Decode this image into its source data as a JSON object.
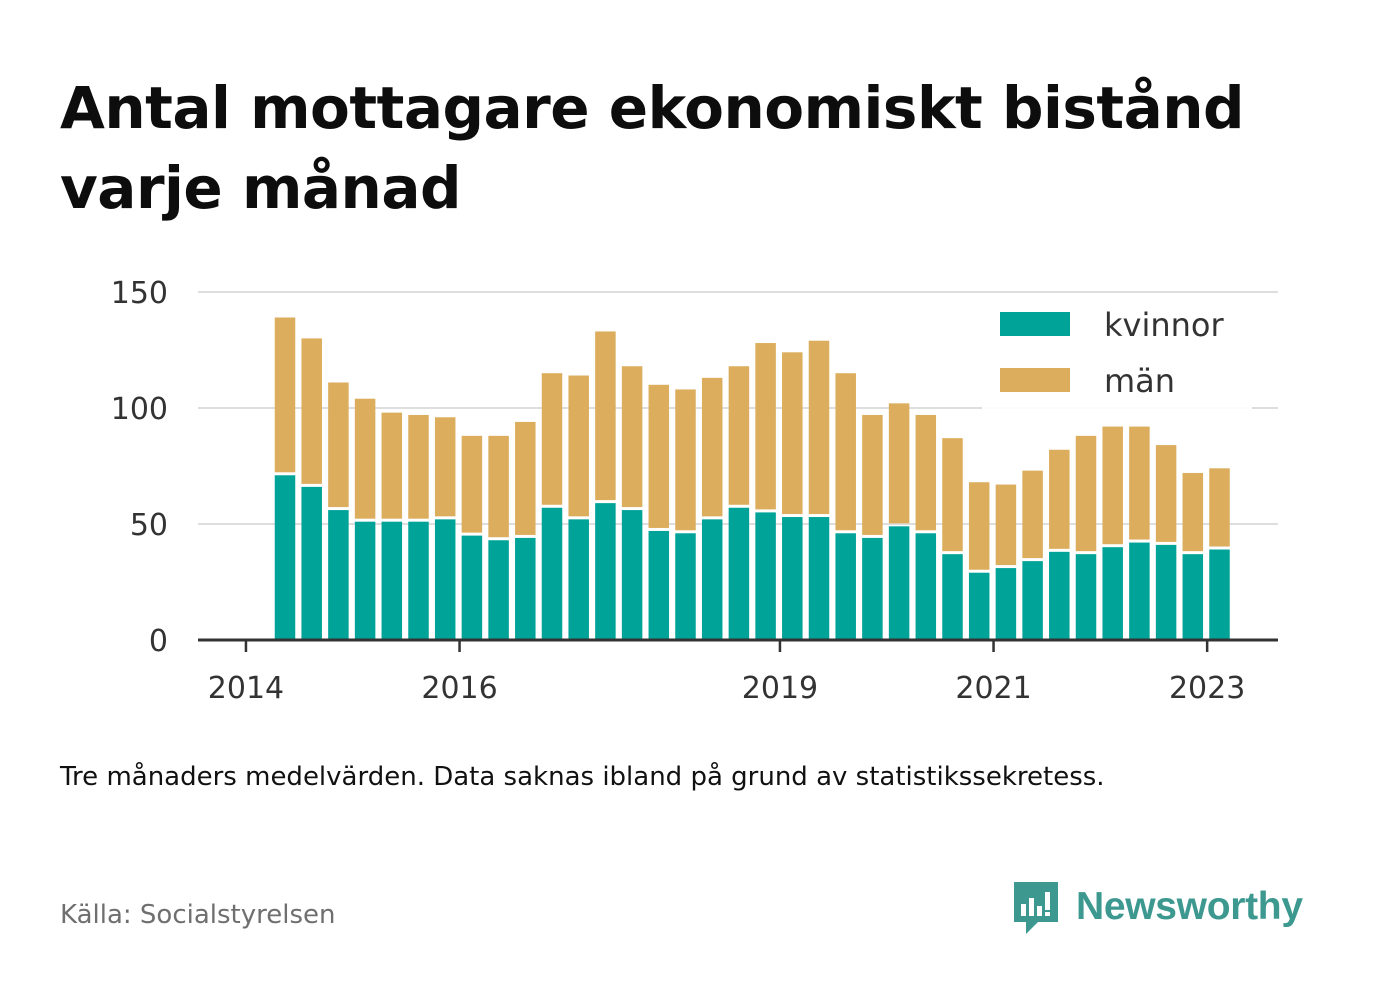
{
  "title": "Antal mottagare ekonomiskt bistånd varje månad",
  "note": "Tre månaders medelvärden. Data saknas ibland på grund av statistikssekretess.",
  "source": "Källa: Socialstyrelsen",
  "brand": {
    "name": "Newsworthy",
    "icon": "newsworthy-logo-icon"
  },
  "colors": {
    "kvinnor": "#00a398",
    "man": "#dcad5c",
    "grid": "#dedede",
    "axis": "#333333",
    "text": "#333333"
  },
  "chart_data": {
    "type": "bar",
    "stacked": true,
    "x_unit": "quarter",
    "x": [
      "2014-Q2",
      "2014-Q3",
      "2014-Q4",
      "2015-Q1",
      "2015-Q2",
      "2015-Q3",
      "2015-Q4",
      "2016-Q1",
      "2016-Q2",
      "2016-Q3",
      "2016-Q4",
      "2017-Q1",
      "2017-Q2",
      "2017-Q3",
      "2017-Q4",
      "2018-Q1",
      "2018-Q2",
      "2018-Q3",
      "2018-Q4",
      "2019-Q1",
      "2019-Q2",
      "2019-Q3",
      "2019-Q4",
      "2020-Q1",
      "2020-Q2",
      "2020-Q3",
      "2020-Q4",
      "2021-Q1",
      "2021-Q2",
      "2021-Q3",
      "2021-Q4",
      "2022-Q1",
      "2022-Q2",
      "2022-Q3",
      "2022-Q4",
      "2023-Q1"
    ],
    "series": [
      {
        "name": "kvinnor",
        "values": [
          71,
          66,
          56,
          51,
          51,
          51,
          52,
          45,
          43,
          44,
          57,
          52,
          59,
          56,
          47,
          46,
          52,
          57,
          55,
          53,
          53,
          46,
          44,
          49,
          46,
          37,
          29,
          31,
          34,
          38,
          37,
          40,
          42,
          41,
          37,
          39
        ]
      },
      {
        "name": "män",
        "values": [
          68,
          64,
          55,
          53,
          47,
          46,
          44,
          43,
          45,
          50,
          58,
          62,
          74,
          62,
          63,
          62,
          61,
          61,
          73,
          71,
          76,
          69,
          53,
          53,
          51,
          50,
          39,
          36,
          39,
          44,
          51,
          52,
          50,
          43,
          35,
          35
        ]
      }
    ],
    "x_ticks": [
      {
        "at": "2014-Q1",
        "label": "2014"
      },
      {
        "at": "2016-Q1",
        "label": "2016"
      },
      {
        "at": "2019-Q1",
        "label": "2019"
      },
      {
        "at": "2021-Q1",
        "label": "2021"
      },
      {
        "at": "2023-Q1",
        "label": "2023"
      }
    ],
    "y_ticks": [
      0,
      50,
      100,
      150
    ],
    "ylim": [
      0,
      150
    ],
    "xlabel": "",
    "ylabel": "",
    "grid": true,
    "legend": {
      "position": "top-right",
      "items": [
        "kvinnor",
        "män"
      ]
    }
  }
}
